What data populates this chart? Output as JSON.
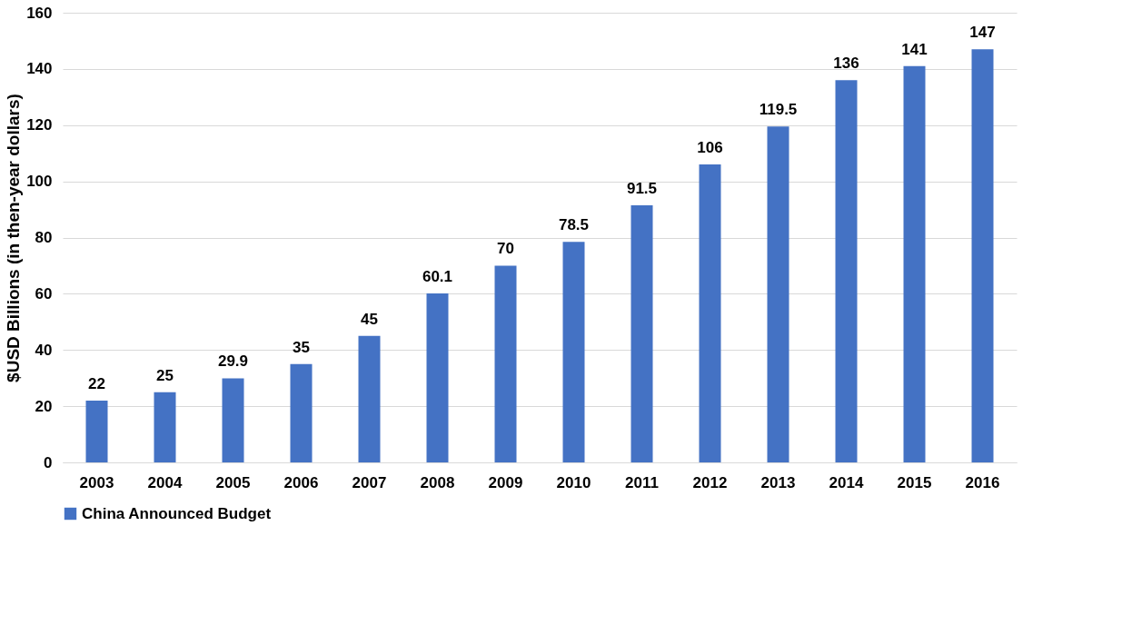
{
  "chart_data": {
    "type": "bar",
    "ylabel": "$USD Billions (in then-year dollars)",
    "categories": [
      "2003",
      "2004",
      "2005",
      "2006",
      "2007",
      "2008",
      "2009",
      "2010",
      "2011",
      "2012",
      "2013",
      "2014",
      "2015",
      "2016"
    ],
    "series": [
      {
        "name": "China Announced Budget",
        "color": "#4472c4",
        "values": [
          22,
          25,
          29.9,
          35,
          45,
          60.1,
          70,
          78.5,
          91.5,
          106,
          119.5,
          136,
          141,
          147
        ]
      }
    ],
    "ylim": [
      0,
      160
    ],
    "yticks": [
      0,
      20,
      40,
      60,
      80,
      100,
      120,
      140,
      160
    ],
    "grid": "y",
    "legend": "bottom",
    "data_labels": true
  }
}
